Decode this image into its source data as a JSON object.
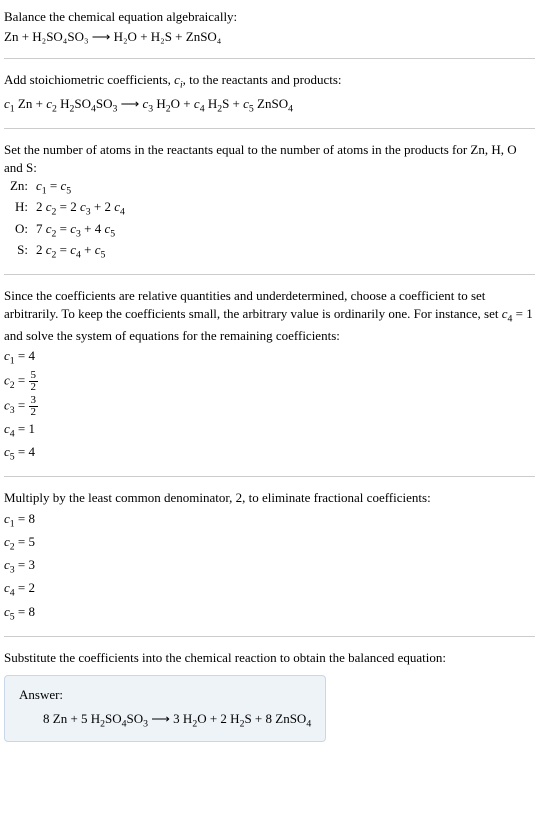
{
  "intro_line1": "Balance the chemical equation algebraically:",
  "intro_eq": "Zn + H₂SO₄SO₃  ⟶  H₂O + H₂S + ZnSO₄",
  "stoich_line1": "Add stoichiometric coefficients, cᵢ, to the reactants and products:",
  "stoich_eq": "c₁ Zn + c₂ H₂SO₄SO₃  ⟶  c₃ H₂O + c₄ H₂S + c₅ ZnSO₄",
  "atoms_line1": "Set the number of atoms in the reactants equal to the number of atoms in the products for Zn, H, O and S:",
  "atom_rows": [
    {
      "label": "Zn:",
      "eq": "c₁ = c₅"
    },
    {
      "label": "H:",
      "eq": "2 c₂ = 2 c₃ + 2 c₄"
    },
    {
      "label": "O:",
      "eq": "7 c₂ = c₃ + 4 c₅"
    },
    {
      "label": "S:",
      "eq": "2 c₂ = c₄ + c₅"
    }
  ],
  "underdet_line": "Since the coefficients are relative quantities and underdetermined, choose a coefficient to set arbitrarily. To keep the coefficients small, the arbitrary value is ordinarily one. For instance, set c₄ = 1 and solve the system of equations for the remaining coefficients:",
  "coeffs1": {
    "c1": "c₁ = 4",
    "c2_pre": "c₂ = ",
    "c2_num": "5",
    "c2_den": "2",
    "c3_pre": "c₃ = ",
    "c3_num": "3",
    "c3_den": "2",
    "c4": "c₄ = 1",
    "c5": "c₅ = 4"
  },
  "lcm_line": "Multiply by the least common denominator, 2, to eliminate fractional coefficients:",
  "coeffs2": [
    "c₁ = 8",
    "c₂ = 5",
    "c₃ = 3",
    "c₄ = 2",
    "c₅ = 8"
  ],
  "sub_line": "Substitute the coefficients into the chemical reaction to obtain the balanced equation:",
  "answer_label": "Answer:",
  "answer_eq": "8 Zn + 5 H₂SO₄SO₃  ⟶  3 H₂O + 2 H₂S + 8 ZnSO₄"
}
